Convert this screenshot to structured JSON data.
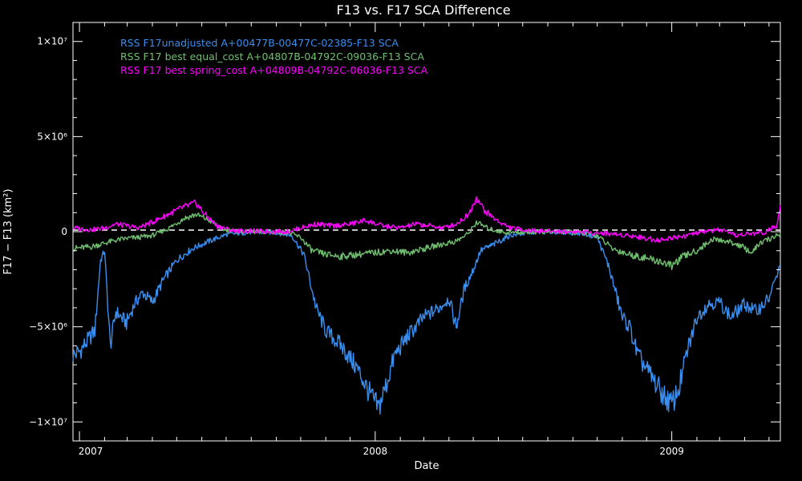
{
  "chart_data": {
    "type": "line",
    "title": "F13 vs. F17 SCA Difference",
    "xlabel": "Date",
    "ylabel": "F17 − F13 (km²)",
    "xlim": [
      "2006-12-24",
      "2009-05-15"
    ],
    "ylim": [
      -11000000,
      11000000
    ],
    "x_ticks": [
      {
        "value": "2007-01-01",
        "label": "2007"
      },
      {
        "value": "2008-01-01",
        "label": "2008"
      },
      {
        "value": "2009-01-01",
        "label": "2009"
      }
    ],
    "y_ticks": [
      {
        "value": 10000000,
        "label": "1×10⁷"
      },
      {
        "value": 5000000,
        "label": "5×10⁶"
      },
      {
        "value": 0,
        "label": "0"
      },
      {
        "value": -5000000,
        "label": "−5×10⁶"
      },
      {
        "value": -10000000,
        "label": "−1×10⁷"
      }
    ],
    "zero_line": {
      "y": 0,
      "style": "dashed",
      "color": "#ffffff"
    },
    "legend": "top-left",
    "grid": false,
    "series": [
      {
        "name": "RSS F17unadjusted A+00477B-00477C-02385-F13 SCA",
        "color": "#3a8ef0",
        "points": [
          [
            "2006-12-24",
            -6500000
          ],
          [
            "2007-01-01",
            -6300000
          ],
          [
            "2007-01-10",
            -5800000
          ],
          [
            "2007-01-20",
            -5200000
          ],
          [
            "2007-01-27",
            -1500000
          ],
          [
            "2007-02-01",
            -1000000
          ],
          [
            "2007-02-08",
            -6000000
          ],
          [
            "2007-02-15",
            -4200000
          ],
          [
            "2007-02-28",
            -4800000
          ],
          [
            "2007-03-10",
            -3800000
          ],
          [
            "2007-03-20",
            -3200000
          ],
          [
            "2007-04-01",
            -3700000
          ],
          [
            "2007-04-15",
            -2500000
          ],
          [
            "2007-05-01",
            -1500000
          ],
          [
            "2007-05-20",
            -900000
          ],
          [
            "2007-06-10",
            -500000
          ],
          [
            "2007-07-01",
            -150000
          ],
          [
            "2007-08-01",
            -30000
          ],
          [
            "2007-09-01",
            -50000
          ],
          [
            "2007-09-20",
            -200000
          ],
          [
            "2007-10-05",
            -1200000
          ],
          [
            "2007-10-20",
            -4000000
          ],
          [
            "2007-11-01",
            -5200000
          ],
          [
            "2007-11-20",
            -6000000
          ],
          [
            "2007-12-10",
            -7200000
          ],
          [
            "2007-12-25",
            -8500000
          ],
          [
            "2008-01-05",
            -9300000
          ],
          [
            "2008-01-15",
            -8000000
          ],
          [
            "2008-01-25",
            -6500000
          ],
          [
            "2008-02-10",
            -5500000
          ],
          [
            "2008-03-01",
            -4500000
          ],
          [
            "2008-03-20",
            -4000000
          ],
          [
            "2008-04-01",
            -3500000
          ],
          [
            "2008-04-10",
            -5000000
          ],
          [
            "2008-04-20",
            -3000000
          ],
          [
            "2008-05-01",
            -2000000
          ],
          [
            "2008-05-10",
            -1000000
          ],
          [
            "2008-05-25",
            -700000
          ],
          [
            "2008-06-15",
            -200000
          ],
          [
            "2008-07-15",
            -20000
          ],
          [
            "2008-08-15",
            -20000
          ],
          [
            "2008-09-15",
            -100000
          ],
          [
            "2008-10-01",
            -300000
          ],
          [
            "2008-10-15",
            -1800000
          ],
          [
            "2008-11-01",
            -4500000
          ],
          [
            "2008-11-10",
            -5000000
          ],
          [
            "2008-11-20",
            -6500000
          ],
          [
            "2008-12-05",
            -7500000
          ],
          [
            "2008-12-20",
            -8500000
          ],
          [
            "2009-01-01",
            -9100000
          ],
          [
            "2009-01-10",
            -8200000
          ],
          [
            "2009-01-20",
            -6300000
          ],
          [
            "2009-02-01",
            -4500000
          ],
          [
            "2009-02-15",
            -3800000
          ],
          [
            "2009-03-01",
            -3700000
          ],
          [
            "2009-03-15",
            -4500000
          ],
          [
            "2009-04-01",
            -3800000
          ],
          [
            "2009-04-15",
            -4200000
          ],
          [
            "2009-05-01",
            -3500000
          ],
          [
            "2009-05-15",
            -1800000
          ]
        ]
      },
      {
        "name": "RSS F17 best equal_cost A+04807B-04792C-09036-F13 SCA",
        "color": "#6fbf6f",
        "points": [
          [
            "2006-12-24",
            -900000
          ],
          [
            "2007-01-01",
            -850000
          ],
          [
            "2007-01-15",
            -800000
          ],
          [
            "2007-02-01",
            -600000
          ],
          [
            "2007-02-15",
            -450000
          ],
          [
            "2007-03-01",
            -350000
          ],
          [
            "2007-03-15",
            -300000
          ],
          [
            "2007-04-01",
            -200000
          ],
          [
            "2007-04-20",
            150000
          ],
          [
            "2007-05-10",
            700000
          ],
          [
            "2007-05-25",
            900000
          ],
          [
            "2007-06-10",
            600000
          ],
          [
            "2007-06-25",
            150000
          ],
          [
            "2007-07-15",
            0
          ],
          [
            "2007-08-15",
            -20000
          ],
          [
            "2007-09-15",
            -40000
          ],
          [
            "2007-10-01",
            -300000
          ],
          [
            "2007-10-15",
            -1000000
          ],
          [
            "2007-11-01",
            -1200000
          ],
          [
            "2007-11-20",
            -1300000
          ],
          [
            "2007-12-10",
            -1200000
          ],
          [
            "2008-01-01",
            -1100000
          ],
          [
            "2008-01-20",
            -1000000
          ],
          [
            "2008-02-10",
            -1100000
          ],
          [
            "2008-03-01",
            -900000
          ],
          [
            "2008-03-20",
            -700000
          ],
          [
            "2008-04-10",
            -500000
          ],
          [
            "2008-04-25",
            -100000
          ],
          [
            "2008-05-05",
            500000
          ],
          [
            "2008-05-20",
            150000
          ],
          [
            "2008-06-10",
            -50000
          ],
          [
            "2008-07-10",
            -10000
          ],
          [
            "2008-08-10",
            -10000
          ],
          [
            "2008-09-10",
            -50000
          ],
          [
            "2008-10-01",
            -200000
          ],
          [
            "2008-10-20",
            -900000
          ],
          [
            "2008-11-10",
            -1200000
          ],
          [
            "2008-12-01",
            -1400000
          ],
          [
            "2008-12-20",
            -1600000
          ],
          [
            "2009-01-01",
            -1800000
          ],
          [
            "2009-01-15",
            -1300000
          ],
          [
            "2009-02-01",
            -1000000
          ],
          [
            "2009-02-20",
            -400000
          ],
          [
            "2009-03-10",
            -500000
          ],
          [
            "2009-03-25",
            -700000
          ],
          [
            "2009-04-10",
            -1100000
          ],
          [
            "2009-04-20",
            -600000
          ],
          [
            "2009-05-01",
            -400000
          ],
          [
            "2009-05-15",
            -100000
          ]
        ]
      },
      {
        "name": "RSS F17 best spring_cost A+04809B-04792C-06036-F13 SCA",
        "color": "#ff00ff",
        "points": [
          [
            "2006-12-24",
            200000
          ],
          [
            "2007-01-15",
            100000
          ],
          [
            "2007-02-01",
            200000
          ],
          [
            "2007-02-15",
            400000
          ],
          [
            "2007-03-01",
            300000
          ],
          [
            "2007-03-15",
            200000
          ],
          [
            "2007-04-01",
            500000
          ],
          [
            "2007-04-20",
            900000
          ],
          [
            "2007-05-10",
            1300000
          ],
          [
            "2007-05-25",
            1500000
          ],
          [
            "2007-06-05",
            900000
          ],
          [
            "2007-06-20",
            300000
          ],
          [
            "2007-07-10",
            50000
          ],
          [
            "2007-08-15",
            20000
          ],
          [
            "2007-09-15",
            0
          ],
          [
            "2007-10-01",
            200000
          ],
          [
            "2007-10-20",
            400000
          ],
          [
            "2007-11-10",
            300000
          ],
          [
            "2007-12-01",
            400000
          ],
          [
            "2007-12-20",
            600000
          ],
          [
            "2008-01-10",
            300000
          ],
          [
            "2008-02-01",
            200000
          ],
          [
            "2008-02-20",
            400000
          ],
          [
            "2008-03-10",
            300000
          ],
          [
            "2008-03-25",
            200000
          ],
          [
            "2008-04-10",
            400000
          ],
          [
            "2008-04-25",
            900000
          ],
          [
            "2008-05-05",
            1800000
          ],
          [
            "2008-05-15",
            1100000
          ],
          [
            "2008-05-30",
            600000
          ],
          [
            "2008-06-15",
            200000
          ],
          [
            "2008-07-15",
            50000
          ],
          [
            "2008-08-15",
            10000
          ],
          [
            "2008-09-15",
            -20000
          ],
          [
            "2008-10-15",
            -100000
          ],
          [
            "2008-11-10",
            -200000
          ],
          [
            "2008-12-01",
            -350000
          ],
          [
            "2008-12-20",
            -450000
          ],
          [
            "2009-01-01",
            -300000
          ],
          [
            "2009-01-20",
            -200000
          ],
          [
            "2009-02-10",
            0
          ],
          [
            "2009-03-01",
            100000
          ],
          [
            "2009-03-20",
            -200000
          ],
          [
            "2009-04-10",
            -100000
          ],
          [
            "2009-04-25",
            -50000
          ],
          [
            "2009-05-10",
            300000
          ],
          [
            "2009-05-15",
            1400000
          ]
        ]
      }
    ]
  }
}
